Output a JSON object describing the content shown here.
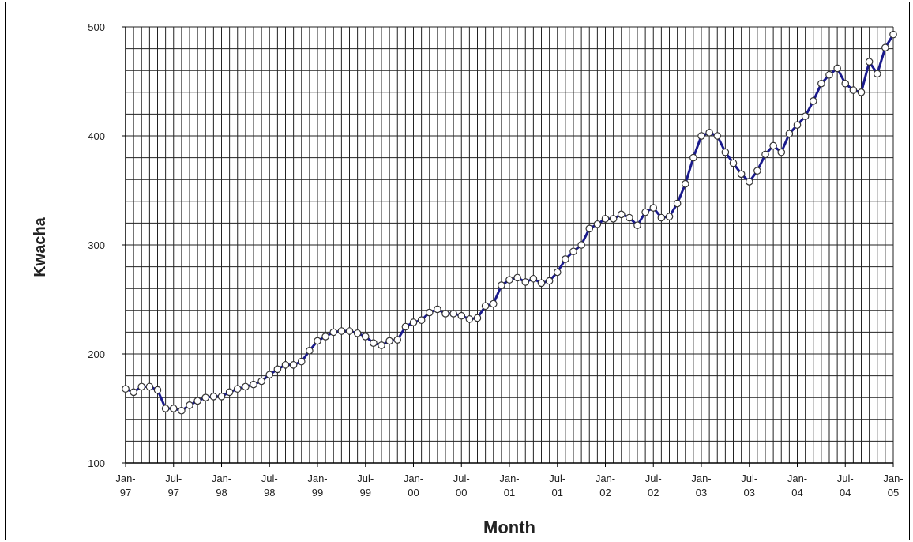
{
  "chart_data": {
    "type": "line",
    "title": "",
    "xlabel": "Month",
    "ylabel": "Kwacha",
    "ylim": [
      100,
      500
    ],
    "yticks": [
      100,
      200,
      300,
      400,
      500
    ],
    "grid": true,
    "legend": "none",
    "x_tick_labels": [
      {
        "month": 0,
        "line1": "Jan-",
        "line2": "97"
      },
      {
        "month": 6,
        "line1": "Jul-",
        "line2": "97"
      },
      {
        "month": 12,
        "line1": "Jan-",
        "line2": "98"
      },
      {
        "month": 18,
        "line1": "Jul-",
        "line2": "98"
      },
      {
        "month": 24,
        "line1": "Jan-",
        "line2": "99"
      },
      {
        "month": 30,
        "line1": "Jul-",
        "line2": "99"
      },
      {
        "month": 36,
        "line1": "Jan-",
        "line2": "00"
      },
      {
        "month": 42,
        "line1": "Jul-",
        "line2": "00"
      },
      {
        "month": 48,
        "line1": "Jan-",
        "line2": "01"
      },
      {
        "month": 54,
        "line1": "Jul-",
        "line2": "01"
      },
      {
        "month": 60,
        "line1": "Jan-",
        "line2": "02"
      },
      {
        "month": 66,
        "line1": "Jul-",
        "line2": "02"
      },
      {
        "month": 72,
        "line1": "Jan-",
        "line2": "03"
      },
      {
        "month": 78,
        "line1": "Jul-",
        "line2": "03"
      },
      {
        "month": 84,
        "line1": "Jan-",
        "line2": "04"
      },
      {
        "month": 90,
        "line1": "Jul-",
        "line2": "04"
      },
      {
        "month": 96,
        "line1": "Jan-",
        "line2": "05"
      }
    ],
    "series": [
      {
        "color": "#1a1a8c",
        "marker_fill": "#ffffff",
        "values": [
          168,
          165,
          170,
          170,
          167,
          150,
          150,
          148,
          153,
          157,
          160,
          161,
          161,
          165,
          168,
          170,
          172,
          175,
          181,
          186,
          190,
          190,
          193,
          203,
          212,
          216,
          220,
          221,
          221,
          219,
          216,
          210,
          208,
          212,
          213,
          225,
          229,
          231,
          238,
          241,
          237,
          237,
          235,
          232,
          233,
          244,
          246,
          263,
          268,
          270,
          266,
          269,
          265,
          267,
          275,
          287,
          294,
          300,
          315,
          319,
          324,
          324,
          328,
          325,
          318,
          330,
          334,
          325,
          326,
          338,
          356,
          380,
          400,
          403,
          400,
          385,
          375,
          365,
          358,
          368,
          383,
          391,
          385,
          402,
          410,
          418,
          432,
          448,
          456,
          462,
          448,
          442,
          440,
          468,
          457,
          481,
          493
        ]
      }
    ]
  }
}
